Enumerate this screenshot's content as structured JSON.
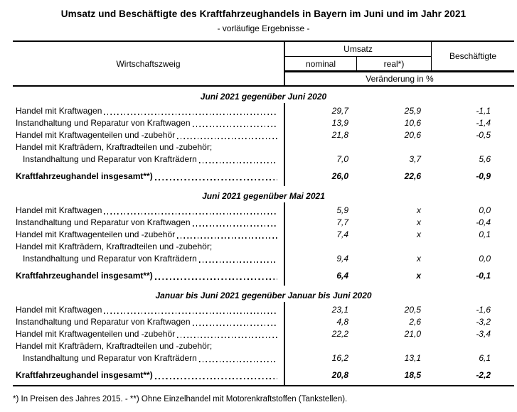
{
  "page": {
    "title": "Umsatz und Beschäftigte des Kraftfahrzeughandels in Bayern im Juni und im Jahr 2021",
    "subtitle": "- vorläufige Ergebnisse -",
    "footnote": "*) In Preisen des Jahres 2015. - **) Ohne Einzelhandel mit Motorenkraftstoffen (Tankstellen)."
  },
  "table": {
    "header": {
      "col_branch": "Wirtschaftszweig",
      "col_umsatz": "Umsatz",
      "col_nominal": "nominal",
      "col_real": "real*)",
      "col_beschaeftigte": "Beschäftigte",
      "unit_row": "Veränderung in %"
    },
    "sections": [
      {
        "title": "Juni 2021 gegenüber Juni 2020",
        "rows": [
          {
            "label_lines": [
              "Handel mit Kraftwagen"
            ],
            "nominal": "29,7",
            "real": "25,9",
            "beschaeftigte": "-1,1"
          },
          {
            "label_lines": [
              "Instandhaltung und Reparatur von Kraftwagen"
            ],
            "nominal": "13,9",
            "real": "10,6",
            "beschaeftigte": "-1,4"
          },
          {
            "label_lines": [
              "Handel mit Kraftwagenteilen und -zubehör"
            ],
            "nominal": "21,8",
            "real": "20,6",
            "beschaeftigte": "-0,5"
          },
          {
            "label_lines": [
              "Handel mit Krafträdern, Kraftradteilen und -zubehör;",
              "Instandhaltung und Reparatur von Krafträdern"
            ],
            "nominal": "7,0",
            "real": "3,7",
            "beschaeftigte": "5,6"
          },
          {
            "label_lines": [
              "Kraftfahrzeughandel insgesamt**)"
            ],
            "nominal": "26,0",
            "real": "22,6",
            "beschaeftigte": "-0,9",
            "total": true
          }
        ]
      },
      {
        "title": "Juni 2021 gegenüber Mai 2021",
        "rows": [
          {
            "label_lines": [
              "Handel mit Kraftwagen"
            ],
            "nominal": "5,9",
            "real": "x",
            "beschaeftigte": "0,0"
          },
          {
            "label_lines": [
              "Instandhaltung und Reparatur von Kraftwagen"
            ],
            "nominal": "7,7",
            "real": "x",
            "beschaeftigte": "-0,4"
          },
          {
            "label_lines": [
              "Handel mit Kraftwagenteilen und -zubehör"
            ],
            "nominal": "7,4",
            "real": "x",
            "beschaeftigte": "0,1"
          },
          {
            "label_lines": [
              "Handel mit Krafträdern, Kraftradteilen und -zubehör;",
              "Instandhaltung und Reparatur von Krafträdern"
            ],
            "nominal": "9,4",
            "real": "x",
            "beschaeftigte": "0,0"
          },
          {
            "label_lines": [
              "Kraftfahrzeughandel insgesamt**)"
            ],
            "nominal": "6,4",
            "real": "x",
            "beschaeftigte": "-0,1",
            "total": true
          }
        ]
      },
      {
        "title": "Januar bis Juni 2021 gegenüber Januar bis Juni 2020",
        "rows": [
          {
            "label_lines": [
              "Handel mit Kraftwagen"
            ],
            "nominal": "23,1",
            "real": "20,5",
            "beschaeftigte": "-1,6"
          },
          {
            "label_lines": [
              "Instandhaltung und Reparatur von Kraftwagen"
            ],
            "nominal": "4,8",
            "real": "2,6",
            "beschaeftigte": "-3,2"
          },
          {
            "label_lines": [
              "Handel mit Kraftwagenteilen und -zubehör"
            ],
            "nominal": "22,2",
            "real": "21,0",
            "beschaeftigte": "-3,4"
          },
          {
            "label_lines": [
              "Handel mit Krafträdern, Kraftradteilen und -zubehör;",
              "Instandhaltung und Reparatur von Krafträdern"
            ],
            "nominal": "16,2",
            "real": "13,1",
            "beschaeftigte": "6,1"
          },
          {
            "label_lines": [
              "Kraftfahrzeughandel insgesamt**)"
            ],
            "nominal": "20,8",
            "real": "18,5",
            "beschaeftigte": "-2,2",
            "total": true
          }
        ]
      }
    ]
  }
}
